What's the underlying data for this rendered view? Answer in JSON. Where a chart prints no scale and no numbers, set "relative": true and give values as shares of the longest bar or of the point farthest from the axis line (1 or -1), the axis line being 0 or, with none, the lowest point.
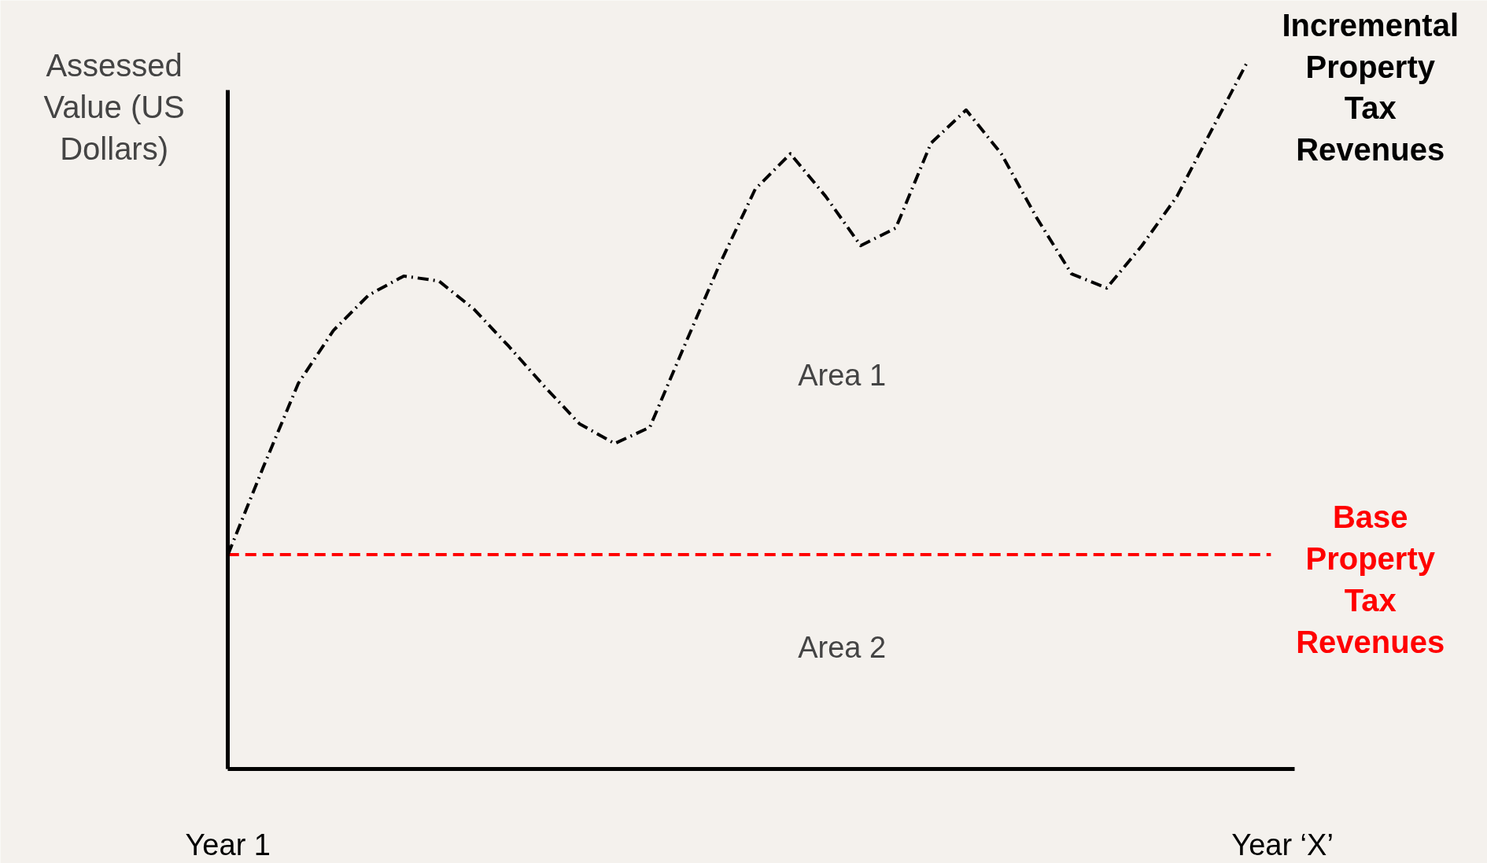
{
  "chart_data": {
    "type": "line",
    "relative": true,
    "ylabel": "Assessed Value (US Dollars)",
    "categories": [
      "Year 1",
      null,
      null,
      null,
      null,
      null,
      null,
      null,
      null,
      null,
      null,
      null,
      null,
      null,
      null,
      null,
      null,
      null,
      null,
      null,
      null,
      null,
      null,
      null,
      null,
      null,
      null,
      null,
      null,
      null,
      "Year ‘X’"
    ],
    "series": [
      {
        "name": "Incremental Property Tax Revenues",
        "color": "#000000",
        "values": [
          0.303,
          0.426,
          0.545,
          0.62,
          0.67,
          0.697,
          0.69,
          0.65,
          0.597,
          0.541,
          0.488,
          0.46,
          0.483,
          0.6,
          0.715,
          0.82,
          0.87,
          0.81,
          0.74,
          0.765,
          0.885,
          0.932,
          0.87,
          0.78,
          0.7,
          0.68,
          0.74,
          0.81,
          0.905,
          1.0,
          null
        ]
      }
    ],
    "line_style": "dashed",
    "ref_lines": [
      {
        "axis": "y",
        "value": 0.303,
        "label": "Base Property Tax Revenues",
        "color": "#ff0000",
        "line_style": "dashed"
      }
    ],
    "annotations": [
      "Area 1",
      "Area 2"
    ]
  }
}
